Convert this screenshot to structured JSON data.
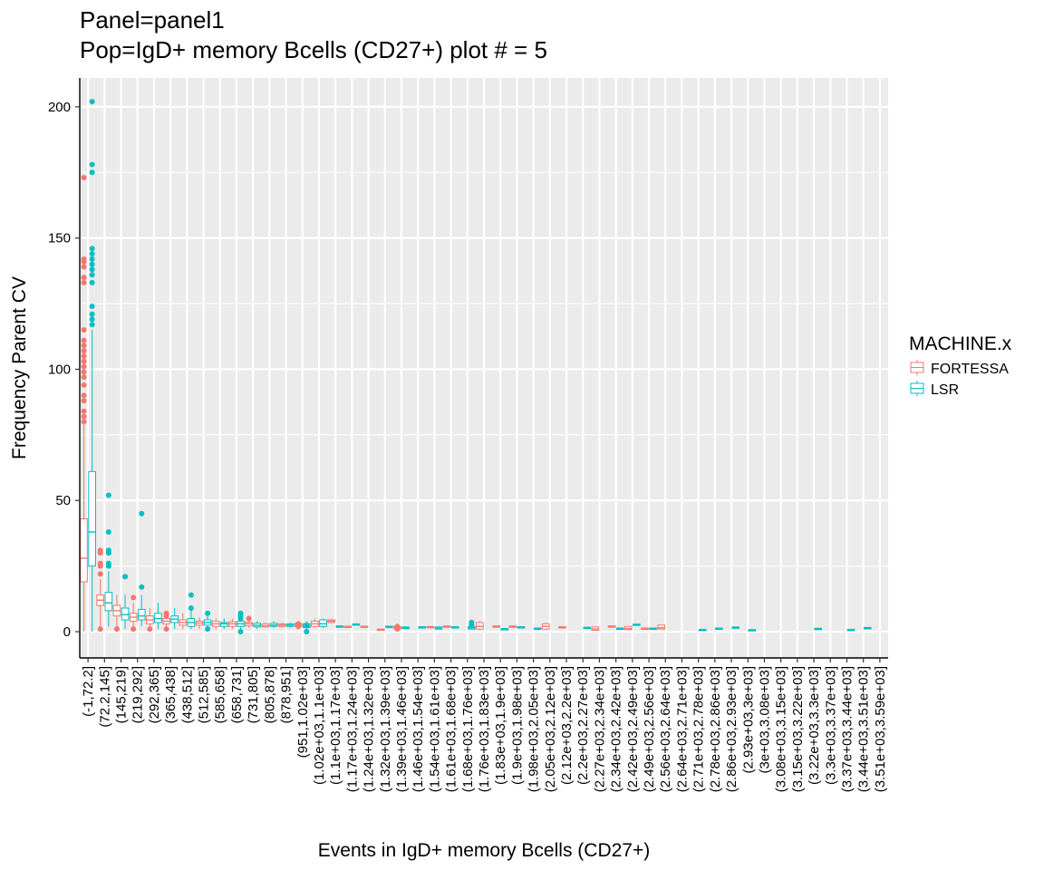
{
  "chart_data": {
    "type": "boxplot",
    "title": "Panel=panel1",
    "subtitle": "Pop=IgD+ memory Bcells (CD27+) plot # = 5",
    "xlabel": "Events in IgD+ memory Bcells (CD27+)",
    "ylabel": "Frequency Parent CV",
    "ylim": [
      -10,
      211
    ],
    "yticks": [
      0,
      50,
      100,
      150,
      200
    ],
    "grid": true,
    "legend": {
      "title": "MACHINE.x",
      "position": "right",
      "entries": [
        "FORTESSA",
        "LSR"
      ]
    },
    "colors": {
      "FORTESSA": "#F8766D",
      "LSR": "#00BFC4",
      "panel": "#EBEBEB",
      "grid": "#FFFFFF"
    },
    "categories": [
      "(-1,72.2]",
      "(72.2,145]",
      "(145,219]",
      "(219,292]",
      "(292,365]",
      "(365,438]",
      "(438,512]",
      "(512,585]",
      "(585,658]",
      "(658,731]",
      "(731,805]",
      "(805,878]",
      "(878,951]",
      "(951,1.02e+03]",
      "(1.02e+03,1.1e+03]",
      "(1.1e+03,1.17e+03]",
      "(1.17e+03,1.24e+03]",
      "(1.24e+03,1.32e+03]",
      "(1.32e+03,1.39e+03]",
      "(1.39e+03,1.46e+03]",
      "(1.46e+03,1.54e+03]",
      "(1.54e+03,1.61e+03]",
      "(1.61e+03,1.68e+03]",
      "(1.68e+03,1.76e+03]",
      "(1.76e+03,1.83e+03]",
      "(1.83e+03,1.9e+03]",
      "(1.9e+03,1.98e+03]",
      "(1.98e+03,2.05e+03]",
      "(2.05e+03,2.12e+03]",
      "(2.12e+03,2.2e+03]",
      "(2.2e+03,2.27e+03]",
      "(2.27e+03,2.34e+03]",
      "(2.34e+03,2.42e+03]",
      "(2.42e+03,2.49e+03]",
      "(2.49e+03,2.56e+03]",
      "(2.56e+03,2.64e+03]",
      "(2.64e+03,2.71e+03]",
      "(2.71e+03,2.78e+03]",
      "(2.78e+03,2.86e+03]",
      "(2.86e+03,2.93e+03]",
      "(2.93e+03,3e+03]",
      "(3e+03,3.08e+03]",
      "(3.08e+03,3.15e+03]",
      "(3.15e+03,3.22e+03]",
      "(3.22e+03,3.3e+03]",
      "(3.3e+03,3.37e+03]",
      "(3.37e+03,3.44e+03]",
      "(3.44e+03,3.51e+03]",
      "(3.51e+03,3.59e+03]"
    ],
    "series": [
      {
        "name": "FORTESSA",
        "boxes": [
          {
            "cat": 0,
            "min": 0,
            "q1": 19,
            "median": 28,
            "q3": 43,
            "max": 79,
            "outliers": [
              80,
              82,
              84,
              88,
              90,
              94,
              97,
              99,
              101,
              103,
              105,
              107,
              109,
              111,
              115,
              133,
              135,
              139,
              141,
              142,
              173
            ]
          },
          {
            "cat": 1,
            "min": 2,
            "q1": 10,
            "median": 12,
            "q3": 14,
            "max": 20,
            "outliers": [
              1,
              22,
              25,
              26,
              30,
              31
            ]
          },
          {
            "cat": 2,
            "min": 0,
            "q1": 6,
            "median": 8,
            "q3": 10,
            "max": 14,
            "outliers": [
              1
            ]
          },
          {
            "cat": 3,
            "min": 2,
            "q1": 4,
            "median": 5.5,
            "q3": 7,
            "max": 11,
            "outliers": [
              1,
              13
            ]
          },
          {
            "cat": 4,
            "min": 1,
            "q1": 3,
            "median": 4.5,
            "q3": 6,
            "max": 9,
            "outliers": [
              1
            ]
          },
          {
            "cat": 5,
            "min": 1,
            "q1": 3,
            "median": 4,
            "q3": 5,
            "max": 8,
            "outliers": [
              1,
              6,
              7
            ]
          },
          {
            "cat": 6,
            "min": 1,
            "q1": 2.5,
            "median": 3.5,
            "q3": 4.5,
            "max": 7,
            "outliers": []
          },
          {
            "cat": 7,
            "min": 1,
            "q1": 2.5,
            "median": 3.3,
            "q3": 4,
            "max": 5.5,
            "outliers": []
          },
          {
            "cat": 8,
            "min": 1,
            "q1": 2,
            "median": 3,
            "q3": 4,
            "max": 5,
            "outliers": []
          },
          {
            "cat": 9,
            "min": 1,
            "q1": 2,
            "median": 3,
            "q3": 3.8,
            "max": 5,
            "outliers": []
          },
          {
            "cat": 10,
            "min": 1.5,
            "q1": 2.2,
            "median": 3,
            "q3": 3.6,
            "max": 4.5,
            "outliers": [
              5
            ]
          },
          {
            "cat": 11,
            "min": 1.5,
            "q1": 1.8,
            "median": 2.3,
            "q3": 3,
            "max": 3.4,
            "outliers": []
          },
          {
            "cat": 12,
            "min": 1.5,
            "q1": 2,
            "median": 2.5,
            "q3": 3,
            "max": 3.5,
            "outliers": []
          },
          {
            "cat": 13,
            "min": 1,
            "q1": 2,
            "median": 2.5,
            "q3": 3.2,
            "max": 4,
            "outliers": [
              3,
              2
            ]
          },
          {
            "cat": 14,
            "min": 1.5,
            "q1": 2,
            "median": 3,
            "q3": 4,
            "max": 5,
            "outliers": []
          },
          {
            "cat": 15,
            "min": 3.2,
            "q1": 3.5,
            "median": 4,
            "q3": 4.5,
            "max": 4.8,
            "outliers": []
          },
          {
            "cat": 16,
            "min": 1.8,
            "q1": 1.9,
            "median": 2,
            "q3": 2.1,
            "max": 2.2,
            "outliers": []
          },
          {
            "cat": 17,
            "min": 1.8,
            "q1": 1.9,
            "median": 2,
            "q3": 2.1,
            "max": 2.2,
            "outliers": []
          },
          {
            "cat": 18,
            "min": 0.5,
            "q1": 0.6,
            "median": 0.8,
            "q3": 1,
            "max": 1.1,
            "outliers": []
          },
          {
            "cat": 19,
            "min": 1,
            "q1": 1,
            "median": 1.6,
            "q3": 2,
            "max": 2.2,
            "outliers": [
              1,
              2
            ]
          },
          {
            "cat": 21,
            "min": 1.5,
            "q1": 1.5,
            "median": 1.7,
            "q3": 2,
            "max": 2,
            "outliers": []
          },
          {
            "cat": 22,
            "min": 1.8,
            "q1": 1.8,
            "median": 2,
            "q3": 2.2,
            "max": 2.2,
            "outliers": []
          },
          {
            "cat": 24,
            "min": 0.5,
            "q1": 1,
            "median": 2,
            "q3": 3.5,
            "max": 4,
            "outliers": []
          },
          {
            "cat": 25,
            "min": 1.8,
            "q1": 1.8,
            "median": 2,
            "q3": 2.2,
            "max": 2.2,
            "outliers": []
          },
          {
            "cat": 26,
            "min": 1.8,
            "q1": 1.8,
            "median": 2,
            "q3": 2.2,
            "max": 2.2,
            "outliers": []
          },
          {
            "cat": 28,
            "min": 0.5,
            "q1": 1,
            "median": 2,
            "q3": 3,
            "max": 3.5,
            "outliers": []
          },
          {
            "cat": 29,
            "min": 1.5,
            "q1": 1.5,
            "median": 1.7,
            "q3": 1.9,
            "max": 1.9,
            "outliers": []
          },
          {
            "cat": 31,
            "min": 0.4,
            "q1": 0.5,
            "median": 1,
            "q3": 1.8,
            "max": 2,
            "outliers": []
          },
          {
            "cat": 32,
            "min": 1.8,
            "q1": 1.8,
            "median": 2,
            "q3": 2.2,
            "max": 2.2,
            "outliers": []
          },
          {
            "cat": 33,
            "min": 0.8,
            "q1": 0.8,
            "median": 1.2,
            "q3": 2,
            "max": 2,
            "outliers": []
          },
          {
            "cat": 34,
            "min": 1,
            "q1": 1,
            "median": 1.2,
            "q3": 1.4,
            "max": 1.4,
            "outliers": []
          },
          {
            "cat": 35,
            "min": 1,
            "q1": 1,
            "median": 1.5,
            "q3": 2.5,
            "max": 2.5,
            "outliers": []
          }
        ]
      },
      {
        "name": "LSR",
        "boxes": [
          {
            "cat": 0,
            "min": 0,
            "q1": 25,
            "median": 38,
            "q3": 61,
            "max": 115,
            "outliers": [
              117,
              119,
              121,
              124,
              133,
              136,
              138,
              140,
              142,
              144,
              146,
              175,
              178,
              202
            ]
          },
          {
            "cat": 1,
            "min": 2,
            "q1": 8,
            "median": 11,
            "q3": 15,
            "max": 23,
            "outliers": [
              25,
              26,
              30,
              31,
              38,
              52
            ]
          },
          {
            "cat": 2,
            "min": 1,
            "q1": 4.5,
            "median": 6.5,
            "q3": 9,
            "max": 14,
            "outliers": [
              21
            ]
          },
          {
            "cat": 3,
            "min": 2,
            "q1": 4.5,
            "median": 6,
            "q3": 8.5,
            "max": 14,
            "outliers": [
              17,
              45
            ]
          },
          {
            "cat": 4,
            "min": 1,
            "q1": 3.5,
            "median": 5,
            "q3": 7,
            "max": 11,
            "outliers": []
          },
          {
            "cat": 5,
            "min": 1,
            "q1": 3.5,
            "median": 4.8,
            "q3": 6,
            "max": 9,
            "outliers": []
          },
          {
            "cat": 6,
            "min": 1,
            "q1": 2,
            "median": 3.5,
            "q3": 5,
            "max": 8,
            "outliers": [
              9,
              14
            ]
          },
          {
            "cat": 7,
            "min": 1,
            "q1": 2.5,
            "median": 3.5,
            "q3": 4.5,
            "max": 6.5,
            "outliers": [
              1,
              7
            ]
          },
          {
            "cat": 8,
            "min": 1,
            "q1": 2,
            "median": 3,
            "q3": 3.5,
            "max": 5,
            "outliers": []
          },
          {
            "cat": 9,
            "min": 1,
            "q1": 2,
            "median": 3,
            "q3": 4,
            "max": 5,
            "outliers": [
              0,
              5,
              6,
              7
            ]
          },
          {
            "cat": 10,
            "min": 1,
            "q1": 1.8,
            "median": 2.4,
            "q3": 3.2,
            "max": 4,
            "outliers": []
          },
          {
            "cat": 11,
            "min": 1.5,
            "q1": 2,
            "median": 2.5,
            "q3": 3.2,
            "max": 4,
            "outliers": []
          },
          {
            "cat": 12,
            "min": 1.5,
            "q1": 2,
            "median": 2.5,
            "q3": 3,
            "max": 3.5,
            "outliers": []
          },
          {
            "cat": 13,
            "min": 1,
            "q1": 1.5,
            "median": 2,
            "q3": 3,
            "max": 4,
            "outliers": [
              0,
              2.5
            ]
          },
          {
            "cat": 14,
            "min": 1.5,
            "q1": 2,
            "median": 3,
            "q3": 4.5,
            "max": 5,
            "outliers": []
          },
          {
            "cat": 15,
            "min": 1.8,
            "q1": 1.8,
            "median": 2,
            "q3": 2.2,
            "max": 2.2,
            "outliers": []
          },
          {
            "cat": 16,
            "min": 2.5,
            "q1": 2.6,
            "median": 2.8,
            "q3": 3,
            "max": 3.1,
            "outliers": []
          },
          {
            "cat": 18,
            "min": 1.8,
            "q1": 1.9,
            "median": 2,
            "q3": 2.1,
            "max": 2.2,
            "outliers": []
          },
          {
            "cat": 19,
            "min": 1,
            "q1": 1.2,
            "median": 1.5,
            "q3": 1.8,
            "max": 2,
            "outliers": []
          },
          {
            "cat": 20,
            "min": 1.5,
            "q1": 1.5,
            "median": 1.7,
            "q3": 1.9,
            "max": 1.9,
            "outliers": []
          },
          {
            "cat": 21,
            "min": 1,
            "q1": 1,
            "median": 1.4,
            "q3": 1.8,
            "max": 2,
            "outliers": []
          },
          {
            "cat": 22,
            "min": 1.5,
            "q1": 1.5,
            "median": 1.7,
            "q3": 1.9,
            "max": 1.9,
            "outliers": []
          },
          {
            "cat": 23,
            "min": 1,
            "q1": 1,
            "median": 1.5,
            "q3": 2,
            "max": 2.5,
            "outliers": [
              3.5,
              2.5
            ]
          },
          {
            "cat": 25,
            "min": 0.8,
            "q1": 0.8,
            "median": 1,
            "q3": 1.2,
            "max": 1.2,
            "outliers": []
          },
          {
            "cat": 26,
            "min": 1.5,
            "q1": 1.5,
            "median": 1.7,
            "q3": 1.9,
            "max": 1.9,
            "outliers": []
          },
          {
            "cat": 27,
            "min": 1,
            "q1": 1,
            "median": 1.2,
            "q3": 1.4,
            "max": 1.4,
            "outliers": []
          },
          {
            "cat": 30,
            "min": 1.3,
            "q1": 1.3,
            "median": 1.5,
            "q3": 1.7,
            "max": 1.7,
            "outliers": []
          },
          {
            "cat": 32,
            "min": 1,
            "q1": 1,
            "median": 1.2,
            "q3": 1.4,
            "max": 1.4,
            "outliers": []
          },
          {
            "cat": 33,
            "min": 2.5,
            "q1": 2.5,
            "median": 2.7,
            "q3": 2.9,
            "max": 2.9,
            "outliers": []
          },
          {
            "cat": 34,
            "min": 1,
            "q1": 1,
            "median": 1.2,
            "q3": 1.4,
            "max": 1.4,
            "outliers": []
          },
          {
            "cat": 37,
            "min": 0.5,
            "q1": 0.5,
            "median": 0.7,
            "q3": 0.9,
            "max": 0.9,
            "outliers": []
          },
          {
            "cat": 38,
            "min": 1,
            "q1": 1,
            "median": 1.2,
            "q3": 1.4,
            "max": 1.4,
            "outliers": []
          },
          {
            "cat": 39,
            "min": 1.4,
            "q1": 1.4,
            "median": 1.6,
            "q3": 1.8,
            "max": 1.8,
            "outliers": []
          },
          {
            "cat": 40,
            "min": 0.4,
            "q1": 0.4,
            "median": 0.6,
            "q3": 0.8,
            "max": 0.8,
            "outliers": []
          },
          {
            "cat": 44,
            "min": 0.9,
            "q1": 0.9,
            "median": 1.1,
            "q3": 1.3,
            "max": 1.3,
            "outliers": []
          },
          {
            "cat": 46,
            "min": 0.5,
            "q1": 0.5,
            "median": 0.7,
            "q3": 0.9,
            "max": 0.9,
            "outliers": []
          },
          {
            "cat": 47,
            "min": 1.2,
            "q1": 1.2,
            "median": 1.4,
            "q3": 1.6,
            "max": 1.6,
            "outliers": []
          }
        ]
      }
    ]
  }
}
